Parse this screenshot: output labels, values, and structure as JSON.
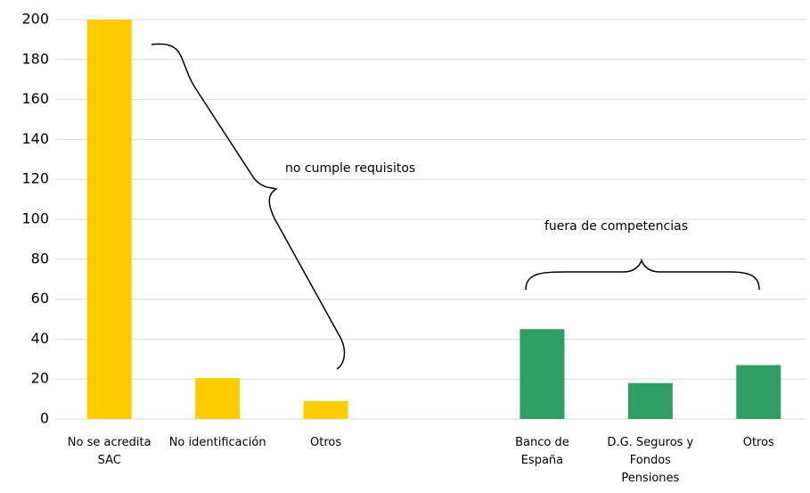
{
  "chart_data": {
    "type": "bar",
    "categories": [
      "No se acredita SAC",
      "No identificación",
      "Otros",
      null,
      "Banco de España",
      "D.G. Seguros y Fondos Pensiones",
      "Otros"
    ],
    "values": [
      200,
      20.5,
      9,
      null,
      45,
      18,
      27
    ],
    "colors": [
      "#ffcc00",
      "#ffcc00",
      "#ffcc00",
      null,
      "#2e9e63",
      "#2e9e63",
      "#2e9e63"
    ],
    "ylim": [
      0,
      200
    ],
    "yticks": [
      0,
      20,
      40,
      60,
      80,
      100,
      120,
      140,
      160,
      180,
      200
    ],
    "grid": true,
    "annotations": [
      "no cumple requisitos",
      "fuera de competencias"
    ]
  }
}
